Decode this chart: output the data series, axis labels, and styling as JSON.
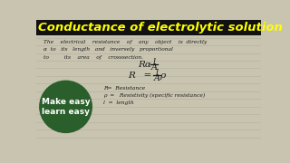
{
  "title": "Conductance of electrolytic solution",
  "title_bg": "#111111",
  "title_color": "#FFFF00",
  "notebook_bg": "#c8c4b0",
  "line1": "The    electrical    resistance    of    any    object    is  directly",
  "line2": "α  to   its   length   and   inversely   proportional",
  "line3": "to         its    area    of    crosssection.",
  "formula1_left": "Rα",
  "formula1_num": "l",
  "formula1_denom": "A",
  "formula2_left": "R   =   ρ",
  "formula2_num": "l",
  "formula2_denom": "A",
  "legend1": "R=  Resistance",
  "legend2": "ρ  =   Resistivity (specific resistance)",
  "legend3": "l  =  length",
  "badge_text1": "Make easy",
  "badge_text2": "learn easy",
  "badge_bg": "#2a5e2a",
  "badge_text_color": "#ffffff",
  "line_color": "#b0b0a0",
  "handwriting_color": "#1a1a1a"
}
